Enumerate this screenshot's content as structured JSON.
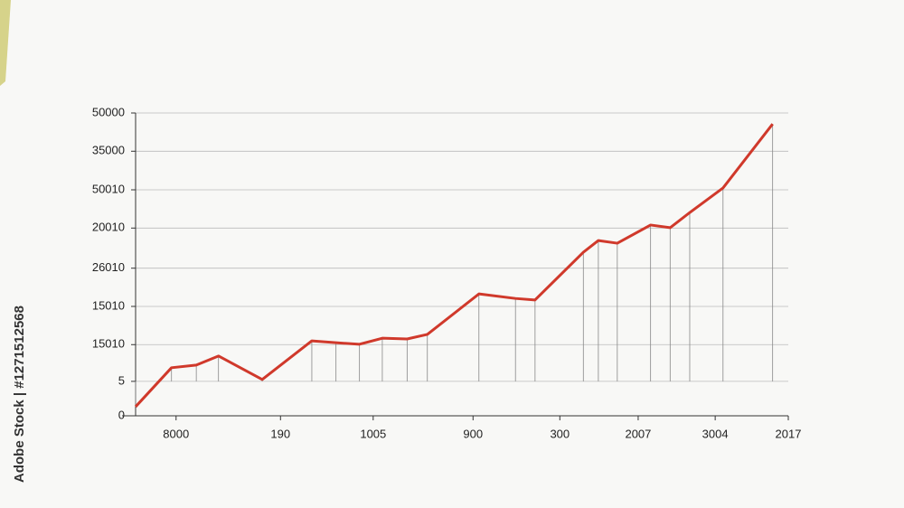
{
  "watermark": "Adobe Stock | #1271512568",
  "chart_data": {
    "type": "line",
    "x": [
      0,
      5.5,
      9.3,
      12.7,
      19.4,
      27,
      30.7,
      34.3,
      37.8,
      41.6,
      44.7,
      52.6,
      58.2,
      61.2,
      68.6,
      70.9,
      73.8,
      78.9,
      81.9,
      84.9,
      90,
      97.6
    ],
    "series": [
      {
        "color": "#d0392b",
        "values": [
          0.24,
          1.27,
          1.34,
          1.58,
          0.96,
          1.98,
          1.93,
          1.89,
          2.05,
          2.03,
          2.15,
          3.22,
          3.1,
          3.06,
          4.32,
          4.63,
          4.56,
          5.04,
          4.97,
          5.37,
          6.02,
          7.71
        ]
      }
    ],
    "xlim": [
      0,
      100
    ],
    "xticks": [
      {
        "value": 6.2,
        "label": "8000"
      },
      {
        "value": 22.2,
        "label": "190"
      },
      {
        "value": 36.4,
        "label": "1005"
      },
      {
        "value": 51.7,
        "label": "900"
      },
      {
        "value": 65,
        "label": "300"
      },
      {
        "value": 77,
        "label": "2007"
      },
      {
        "value": 88.8,
        "label": "3004"
      },
      {
        "value": 100,
        "label": "2017"
      }
    ],
    "ylim": [
      0,
      8
    ],
    "yticks": [
      0,
      {
        "value": 0.91,
        "label": "5"
      },
      {
        "value": 1.88,
        "label": "15010"
      },
      {
        "value": 2.89,
        "label": "15010"
      },
      {
        "value": 3.9,
        "label": "26010"
      },
      {
        "value": 4.96,
        "label": "20010"
      },
      {
        "value": 5.97,
        "label": "50010"
      },
      {
        "value": 6.99,
        "label": "35000"
      },
      {
        "value": 8,
        "label": "50000"
      }
    ],
    "grid": true,
    "drop_lines": true
  }
}
